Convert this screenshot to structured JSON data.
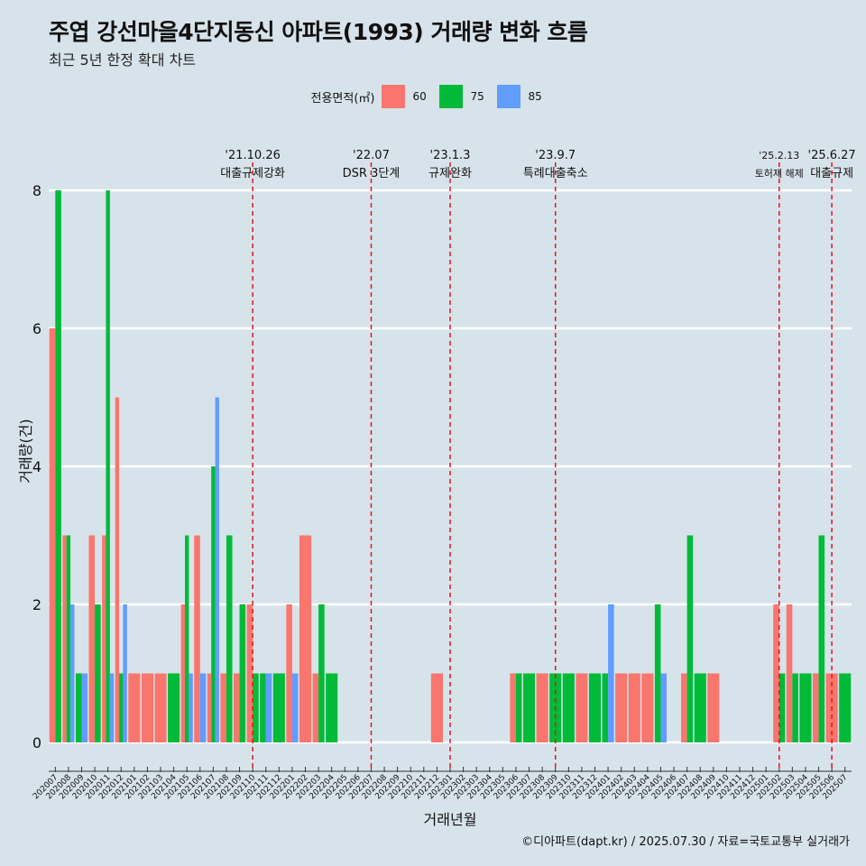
{
  "title": "주엽 강선마을4단지동신 아파트(1993) 거래량 변화 흐름",
  "subtitle": "최근 5년 한정 확대 차트",
  "legend": {
    "title": "전용면적(㎡)",
    "items": [
      {
        "label": "60",
        "color": "#f8766d"
      },
      {
        "label": "75",
        "color": "#00ba38"
      },
      {
        "label": "85",
        "color": "#619cff"
      }
    ]
  },
  "caption": "©디아파트(dapt.kr) / 2025.07.30 / 자료=국토교통부 실거래가",
  "chart_data": {
    "type": "bar",
    "xlabel": "거래년월",
    "ylabel": "거래량(건)",
    "ylim": [
      0,
      8.5
    ],
    "yticks": [
      0,
      2,
      4,
      6,
      8
    ],
    "grid": "horizontal",
    "legend_position": "top",
    "categories": [
      "202007",
      "202008",
      "202009",
      "202010",
      "202011",
      "202012",
      "202101",
      "202102",
      "202103",
      "202104",
      "202105",
      "202106",
      "202107",
      "202108",
      "202109",
      "202110",
      "202111",
      "202112",
      "202201",
      "202202",
      "202203",
      "202204",
      "202205",
      "202206",
      "202207",
      "202208",
      "202209",
      "202210",
      "202211",
      "202212",
      "202301",
      "202302",
      "202303",
      "202304",
      "202305",
      "202306",
      "202307",
      "202308",
      "202309",
      "202310",
      "202311",
      "202312",
      "202401",
      "202402",
      "202403",
      "202404",
      "202405",
      "202406",
      "202407",
      "202408",
      "202409",
      "202410",
      "202411",
      "202412",
      "202501",
      "202502",
      "202503",
      "202504",
      "202505",
      "202506",
      "202507"
    ],
    "series": [
      {
        "name": "60",
        "color": "#f8766d",
        "values": [
          6,
          3,
          0,
          3,
          3,
          5,
          1,
          1,
          1,
          0,
          2,
          3,
          1,
          1,
          1,
          2,
          0,
          0,
          2,
          3,
          1,
          0,
          0,
          0,
          0,
          0,
          0,
          0,
          0,
          1,
          0,
          0,
          0,
          0,
          0,
          1,
          0,
          1,
          0,
          0,
          1,
          0,
          0,
          1,
          1,
          1,
          0,
          0,
          1,
          0,
          1,
          0,
          0,
          0,
          0,
          2,
          2,
          0,
          1,
          1,
          0
        ]
      },
      {
        "name": "75",
        "color": "#00ba38",
        "values": [
          8,
          3,
          1,
          2,
          8,
          1,
          0,
          0,
          0,
          1,
          3,
          0,
          4,
          3,
          2,
          1,
          1,
          1,
          0,
          0,
          2,
          1,
          0,
          0,
          0,
          0,
          0,
          0,
          0,
          0,
          0,
          0,
          0,
          0,
          0,
          1,
          1,
          0,
          1,
          1,
          0,
          1,
          1,
          0,
          0,
          0,
          2,
          0,
          3,
          1,
          0,
          0,
          0,
          0,
          0,
          1,
          1,
          1,
          3,
          0,
          1
        ]
      },
      {
        "name": "85",
        "color": "#619cff",
        "values": [
          0,
          2,
          1,
          0,
          1,
          2,
          0,
          0,
          0,
          0,
          1,
          1,
          5,
          0,
          0,
          0,
          1,
          0,
          1,
          0,
          0,
          0,
          0,
          0,
          0,
          0,
          0,
          0,
          0,
          0,
          0,
          0,
          0,
          0,
          0,
          0,
          0,
          0,
          0,
          0,
          0,
          0,
          2,
          0,
          0,
          0,
          1,
          0,
          0,
          0,
          0,
          0,
          0,
          0,
          0,
          0,
          0,
          0,
          0,
          0,
          0
        ]
      }
    ],
    "annotations": [
      {
        "x": "202110",
        "date": "'21.10.26",
        "label": "대출규제강화"
      },
      {
        "x": "202207",
        "date": "'22.07",
        "label": "DSR 3단계"
      },
      {
        "x": "202301",
        "date": "'23.1.3",
        "label": "규제완화"
      },
      {
        "x": "202309",
        "date": "'23.9.7",
        "label": "특례대출축소"
      },
      {
        "x": "202502",
        "date": "'25.2.13",
        "label": "토허제 해제"
      },
      {
        "x": "202506",
        "date": "'25.6.27",
        "label": "대출규제"
      }
    ]
  }
}
